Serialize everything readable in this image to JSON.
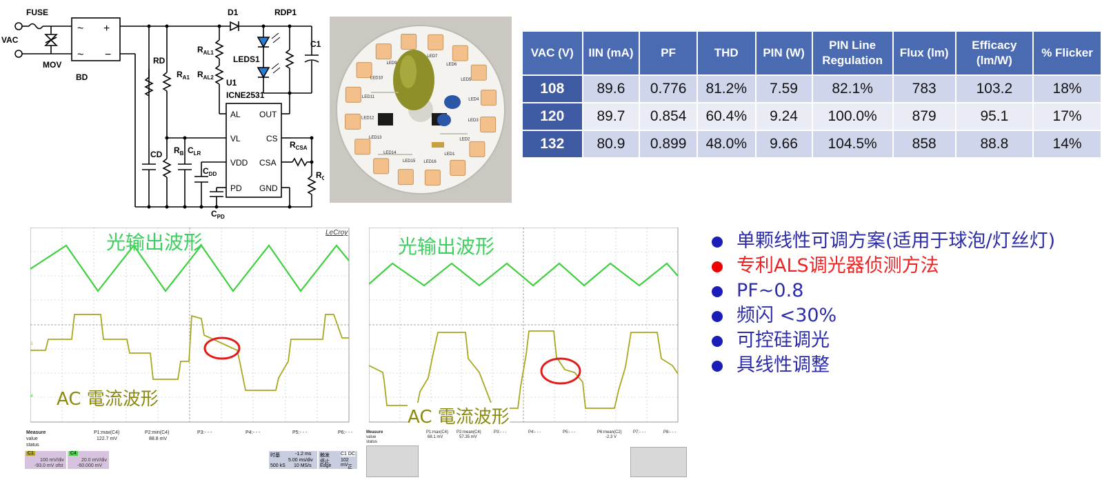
{
  "schematic": {
    "labels": {
      "fuse": "FUSE",
      "vac": "VAC",
      "mov": "MOV",
      "bd": "BD",
      "d1": "D1",
      "rdp1": "RDP1",
      "leds1": "LEDS1",
      "c1": "C1",
      "rd": "RD",
      "ra1": "R",
      "ra1_sub": "A1",
      "ral1": "R",
      "ral1_sub": "AL1",
      "ral2": "R",
      "ral2_sub": "AL2",
      "u1": "U1",
      "ic": "ICNE2531",
      "cd": "CD",
      "rb": "R",
      "rb_sub": "B",
      "clr": "C",
      "clr_sub": "LR",
      "cdd": "C",
      "cdd_sub": "DD",
      "cpd": "C",
      "cpd_sub": "PD",
      "rcsa": "R",
      "rcsa_sub": "CSA",
      "rcs": "R",
      "rcs_sub": "CS",
      "pin_al": "AL",
      "pin_vl": "VL",
      "pin_vdd": "VDD",
      "pin_pd": "PD",
      "pin_out": "OUT",
      "pin_cs": "CS",
      "pin_csa": "CSA",
      "pin_gnd": "GND",
      "plus": "+",
      "minus": "−",
      "tilde": "~"
    }
  },
  "photo": {
    "led_labels": [
      "LED8",
      "LED7",
      "LED6",
      "LED5",
      "LED4",
      "LED3",
      "LED2",
      "LED1",
      "LED16",
      "LED15",
      "LED14",
      "LED13",
      "LED12",
      "LED11",
      "LED10",
      "LED9"
    ]
  },
  "table": {
    "headers": [
      "VAC (V)",
      "IIN (mA)",
      "PF",
      "THD",
      "PIN (W)",
      "PIN Line Regulation",
      "Flux (lm)",
      "Efficacy (lm/W)",
      "% Flicker"
    ],
    "rows": [
      [
        "108",
        "89.6",
        "0.776",
        "81.2%",
        "7.59",
        "82.1%",
        "783",
        "103.2",
        "18%"
      ],
      [
        "120",
        "89.7",
        "0.854",
        "60.4%",
        "9.24",
        "100.0%",
        "879",
        "95.1",
        "17%"
      ],
      [
        "132",
        "80.9",
        "0.899",
        "48.0%",
        "9.66",
        "104.5%",
        "858",
        "88.8",
        "14%"
      ]
    ]
  },
  "scope1": {
    "light_label": "光输出波形",
    "current_label": "AC 電流波形",
    "brand": "LeCroy",
    "ch1_marker": "C1",
    "ch4_marker": "C4",
    "measure": {
      "title": "Measure",
      "value_label": "value",
      "status_label": "status",
      "p1": "P1:max(C4)",
      "p1_value": "122.7 mV",
      "p2": "P2:min(C4)",
      "p2_value": "88.8 mV",
      "p3": "P3:- - -",
      "p4": "P4:- - -",
      "p5": "P5:- - -",
      "p6": "P6:- - -"
    },
    "chips": {
      "c1_name": "C1",
      "c1_line1": "100 mV/div",
      "c1_line2": "-93.0 mV ofst",
      "c4_name": "C4",
      "c4_line1": "20.0 mV/div",
      "c4_line2": "-60.000 mV",
      "tb_label": "时基",
      "tb_offset": "-1.2 ms",
      "tb_div": "5.00 ms/div",
      "tb_samples": "500 kS",
      "tb_rate": "10 MS/s",
      "trig_label": "触发",
      "trig_ch": "C1 DC",
      "trig_mode": "停止",
      "trig_level": "102 mV",
      "trig_type": "Edge",
      "trig_slope": "正"
    }
  },
  "scope2": {
    "light_label": "光输出波形",
    "current_label": "AC 電流波形",
    "measure": {
      "title": "Measure",
      "value_label": "value",
      "status_label": "status",
      "p1": "P1:max(C4)",
      "p1_value": "68.1 mV",
      "p2": "P2:mean(C4)",
      "p2_value": "57.35 mV",
      "p3": "P3:- - -",
      "p4": "P4:- - -",
      "p5": "P5:- - -",
      "p6": "P6:mean(C2)",
      "p6_value": "-2.3 V",
      "p7": "P7:- - -",
      "p8": "P8:- - -"
    }
  },
  "bullets": [
    {
      "text": "单颗线性可调方案(适用于球泡/灯丝灯)",
      "color": "#2c2ca8"
    },
    {
      "text": "专利ALS调光器侦测方法",
      "color": "#ee2222"
    },
    {
      "text": "PF~0.8",
      "color": "#2c2ca8"
    },
    {
      "text": "频闪 <30%",
      "color": "#2c2ca8"
    },
    {
      "text": "可控硅调光",
      "color": "#2c2ca8"
    },
    {
      "text": "具线性调整",
      "color": "#2c2ca8"
    }
  ]
}
